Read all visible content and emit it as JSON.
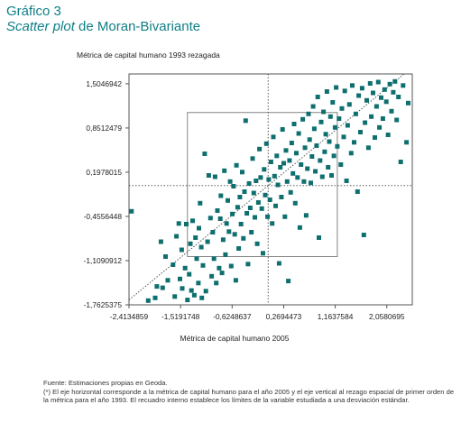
{
  "figure": {
    "number": "Gráfico 3",
    "title_italic": "Scatter plot",
    "title_rest": " de Moran-Bivariante"
  },
  "notes": {
    "source": "Fuente: Estimaciones propias en Geoda.",
    "footnote": "(*) El eje horizontal corresponde a la métrica de capital humano para el año 2005 y el eje vertical al rezago espacial de primer orden de la métrica para el año 1993. El recuadro interno establece los límites de la variable estudiada a una desviación estándar."
  },
  "colors": {
    "marker": "#0f6f6f",
    "title": "#0f7f86",
    "frame": "#555555",
    "guide": "#444444"
  },
  "chart_data": {
    "type": "scatter",
    "xlabel": "Métrica de capital humano 2005",
    "ylabel": "Métrica de capital humano 1993 rezagada",
    "xlim": [
      -2.4134859,
      2.5
    ],
    "ylim": [
      -1.7625375,
      1.65
    ],
    "xticks": [
      -2.4134859,
      -1.5191748,
      -0.6248637,
      0.2694473,
      1.1637584,
      2.0580695
    ],
    "xtick_labels": [
      "-2,4134859",
      "-1,5191748",
      "-0,6248637",
      "0,2694473",
      "1,1637584",
      "2,0580695"
    ],
    "yticks": [
      -1.7625375,
      -1.1090912,
      -0.4556448,
      0.1978015,
      0.8512479,
      1.5046942
    ],
    "ytick_labels": [
      "-1,7625375",
      "-1,1090912",
      "-0,4556448",
      "0,1978015",
      "0,8512479",
      "1,5046942"
    ],
    "regression": {
      "slope": 0.7,
      "intercept": 0
    },
    "mean_lines": {
      "x": 0,
      "y": 0
    },
    "sd_box": {
      "x": [
        -1.4,
        1.2
      ],
      "y": [
        -1.05,
        1.08
      ]
    },
    "points": [
      [
        -2.37,
        -0.38
      ],
      [
        -2.08,
        -1.7
      ],
      [
        -1.96,
        -1.66
      ],
      [
        -1.93,
        -1.49
      ],
      [
        -1.86,
        -0.83
      ],
      [
        -1.83,
        -1.51
      ],
      [
        -1.78,
        -1.05
      ],
      [
        -1.74,
        -1.4
      ],
      [
        -1.65,
        -1.17
      ],
      [
        -1.62,
        -1.64
      ],
      [
        -1.59,
        -0.75
      ],
      [
        -1.55,
        -0.56
      ],
      [
        -1.53,
        -1.38
      ],
      [
        -1.5,
        -0.95
      ],
      [
        -1.49,
        -1.52
      ],
      [
        -1.44,
        -1.22
      ],
      [
        -1.42,
        -0.57
      ],
      [
        -1.4,
        -1.69
      ],
      [
        -1.37,
        -1.31
      ],
      [
        -1.35,
        -0.86
      ],
      [
        -1.33,
        -1.55
      ],
      [
        -1.31,
        -0.52
      ],
      [
        -1.28,
        -1.62
      ],
      [
        -1.26,
        -0.77
      ],
      [
        -1.24,
        -1.08
      ],
      [
        -1.21,
        -1.44
      ],
      [
        -1.2,
        -0.63
      ],
      [
        -1.18,
        -0.26
      ],
      [
        -1.16,
        -0.91
      ],
      [
        -1.15,
        -1.66
      ],
      [
        -1.13,
        -1.18
      ],
      [
        -1.1,
        0.47
      ],
      [
        -1.08,
        -1.56
      ],
      [
        -1.05,
        -0.83
      ],
      [
        -1.03,
        0.15
      ],
      [
        -1.0,
        -0.48
      ],
      [
        -0.98,
        -1.34
      ],
      [
        -0.96,
        -0.69
      ],
      [
        -0.94,
        -1.08
      ],
      [
        -0.92,
        0.13
      ],
      [
        -0.9,
        -1.44
      ],
      [
        -0.88,
        -0.37
      ],
      [
        -0.85,
        -1.22
      ],
      [
        -0.83,
        -0.49
      ],
      [
        -0.82,
        -0.15
      ],
      [
        -0.8,
        -1.29
      ],
      [
        -0.78,
        -0.8
      ],
      [
        -0.76,
        0.22
      ],
      [
        -0.74,
        -1.02
      ],
      [
        -0.72,
        -0.56
      ],
      [
        -0.7,
        -0.22
      ],
      [
        -0.68,
        -0.68
      ],
      [
        -0.66,
        0.06
      ],
      [
        -0.64,
        -1.19
      ],
      [
        -0.62,
        -0.42
      ],
      [
        -0.6,
        -0.01
      ],
      [
        -0.58,
        -0.72
      ],
      [
        -0.56,
        -1.4
      ],
      [
        -0.55,
        0.3
      ],
      [
        -0.53,
        -0.32
      ],
      [
        -0.51,
        -0.93
      ],
      [
        -0.49,
        -0.17
      ],
      [
        -0.47,
        -0.57
      ],
      [
        -0.45,
        0.2
      ],
      [
        -0.43,
        -0.78
      ],
      [
        -0.41,
        -0.09
      ],
      [
        -0.39,
        0.96
      ],
      [
        -0.37,
        -0.41
      ],
      [
        -0.35,
        -1.16
      ],
      [
        -0.33,
        0.03
      ],
      [
        -0.31,
        -0.33
      ],
      [
        -0.29,
        -0.69
      ],
      [
        -0.27,
        0.4
      ],
      [
        -0.25,
        -0.11
      ],
      [
        -0.23,
        -0.47
      ],
      [
        -0.21,
        0.07
      ],
      [
        -0.19,
        -0.86
      ],
      [
        -0.17,
        -0.25
      ],
      [
        -0.15,
        0.54
      ],
      [
        -0.13,
        0.12
      ],
      [
        -0.11,
        -0.34
      ],
      [
        -0.09,
        -1.0
      ],
      [
        -0.07,
        0.24
      ],
      [
        -0.05,
        -0.14
      ],
      [
        -0.03,
        0.62
      ],
      [
        -0.01,
        -0.46
      ],
      [
        0.01,
        0.09
      ],
      [
        0.03,
        -0.21
      ],
      [
        0.05,
        0.35
      ],
      [
        0.07,
        -0.56
      ],
      [
        0.09,
        0.72
      ],
      [
        0.11,
        0.14
      ],
      [
        0.13,
        -0.3
      ],
      [
        0.15,
        0.44
      ],
      [
        0.17,
        0.01
      ],
      [
        0.19,
        -1.15
      ],
      [
        0.21,
        0.27
      ],
      [
        0.23,
        -0.17
      ],
      [
        0.25,
        0.83
      ],
      [
        0.27,
        0.33
      ],
      [
        0.29,
        -0.46
      ],
      [
        0.31,
        0.52
      ],
      [
        0.33,
        0.06
      ],
      [
        0.35,
        -1.41
      ],
      [
        0.37,
        0.37
      ],
      [
        0.39,
        -0.1
      ],
      [
        0.41,
        0.63
      ],
      [
        0.43,
        0.18
      ],
      [
        0.45,
        0.91
      ],
      [
        0.47,
        -0.26
      ],
      [
        0.49,
        0.48
      ],
      [
        0.51,
        0.12
      ],
      [
        0.53,
        0.77
      ],
      [
        0.55,
        -0.62
      ],
      [
        0.57,
        0.31
      ],
      [
        0.6,
        0.98
      ],
      [
        0.62,
        0.06
      ],
      [
        0.64,
        0.56
      ],
      [
        0.66,
        -0.44
      ],
      [
        0.68,
        0.25
      ],
      [
        0.7,
        1.06
      ],
      [
        0.72,
        0.68
      ],
      [
        0.74,
        0.04
      ],
      [
        0.76,
        0.43
      ],
      [
        0.78,
        1.17
      ],
      [
        0.8,
        0.84
      ],
      [
        0.82,
        0.21
      ],
      [
        0.84,
        0.59
      ],
      [
        0.86,
        1.31
      ],
      [
        0.88,
        -0.77
      ],
      [
        0.9,
        0.37
      ],
      [
        0.92,
        0.94
      ],
      [
        0.94,
        0.13
      ],
      [
        0.96,
        1.09
      ],
      [
        0.98,
        0.5
      ],
      [
        1.0,
        0.76
      ],
      [
        1.02,
        1.39
      ],
      [
        1.04,
        0.27
      ],
      [
        1.06,
        0.65
      ],
      [
        1.08,
        1.02
      ],
      [
        1.1,
        0.15
      ],
      [
        1.12,
        1.23
      ],
      [
        1.14,
        0.44
      ],
      [
        1.16,
        0.86
      ],
      [
        1.18,
        1.45
      ],
      [
        1.2,
        0.58
      ],
      [
        1.23,
        0.99
      ],
      [
        1.26,
        0.31
      ],
      [
        1.28,
        1.14
      ],
      [
        1.31,
        0.72
      ],
      [
        1.33,
        1.4
      ],
      [
        1.36,
        0.07
      ],
      [
        1.38,
        0.89
      ],
      [
        1.41,
        1.2
      ],
      [
        1.44,
        0.48
      ],
      [
        1.46,
        1.48
      ],
      [
        1.49,
        0.64
      ],
      [
        1.52,
        1.06
      ],
      [
        1.55,
        -0.09
      ],
      [
        1.57,
        1.33
      ],
      [
        1.6,
        0.79
      ],
      [
        1.63,
        1.44
      ],
      [
        1.66,
        -0.73
      ],
      [
        1.68,
        0.93
      ],
      [
        1.71,
        1.26
      ],
      [
        1.74,
        0.56
      ],
      [
        1.77,
        1.51
      ],
      [
        1.79,
        1.02
      ],
      [
        1.82,
        1.37
      ],
      [
        1.85,
        0.71
      ],
      [
        1.88,
        1.17
      ],
      [
        1.91,
        1.53
      ],
      [
        1.93,
        0.86
      ],
      [
        1.96,
        1.3
      ],
      [
        1.99,
        0.99
      ],
      [
        2.02,
        1.42
      ],
      [
        2.05,
        1.24
      ],
      [
        2.08,
        0.75
      ],
      [
        2.11,
        1.5
      ],
      [
        2.14,
        1.1
      ],
      [
        2.17,
        1.38
      ],
      [
        2.2,
        1.54
      ],
      [
        2.23,
        0.97
      ],
      [
        2.26,
        1.31
      ],
      [
        2.3,
        0.35
      ],
      [
        2.34,
        1.48
      ],
      [
        2.4,
        0.64
      ],
      [
        2.43,
        1.22
      ]
    ]
  }
}
